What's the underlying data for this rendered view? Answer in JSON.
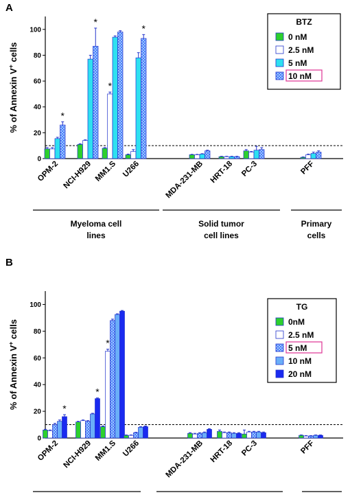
{
  "colors": {
    "green": "#2dd02d",
    "white": "#ffffff",
    "cyan": "#2ee0f0",
    "checker_a": "#9fc4ff",
    "checker_b": "#4a7ef8",
    "light_blue": "#6aaef8",
    "blue": "#1a2af0",
    "error": "#2233cc",
    "highlight": "#e0409a"
  },
  "common": {
    "ylabel_pre": "% of Annexin V",
    "ylabel_sup": "+",
    "ylabel_post": " cells",
    "threshold": 10
  },
  "chart_data": [
    {
      "type": "bar",
      "panel": "A",
      "ylim": [
        0,
        110
      ],
      "yticks": [
        0,
        20,
        40,
        60,
        80,
        100
      ],
      "threshold": 10,
      "legend": {
        "title": "BTZ",
        "position": "top-right",
        "highlighted": "10 nM"
      },
      "categories": [
        "OPM-2",
        "NCI-H929",
        "MM1.S",
        "U266",
        "MDA-231-MB",
        "HRT-18",
        "PC-3",
        "PFF"
      ],
      "series": [
        {
          "name": "0 nM",
          "fill": "green",
          "values": [
            7.5,
            11,
            8,
            3,
            3,
            1.5,
            6,
            1
          ],
          "errors": [
            1,
            0.5,
            0.5,
            0.5,
            0.3,
            0.3,
            1,
            0.3
          ]
        },
        {
          "name": "2.5 nM",
          "fill": "white",
          "values": [
            7.5,
            14,
            50,
            5.5,
            3,
            1.5,
            5,
            3
          ],
          "errors": [
            1,
            0.5,
            1.5,
            1.5,
            0.3,
            0.3,
            0.5,
            0.5
          ]
        },
        {
          "name": "5 nM",
          "fill": "cyan",
          "values": [
            15.5,
            77,
            94,
            78,
            3.5,
            1.5,
            6.5,
            4
          ],
          "errors": [
            1,
            3,
            1,
            4,
            0.3,
            0.3,
            3,
            1
          ]
        },
        {
          "name": "10 nM",
          "fill": "checker",
          "values": [
            26,
            87,
            98,
            93,
            6,
            1.5,
            7,
            5
          ],
          "errors": [
            2.5,
            14,
            1,
            3,
            0.5,
            0.3,
            1.5,
            1
          ]
        }
      ],
      "significant": [
        "OPM-2",
        "NCI-H929",
        "MM1.S",
        "U266"
      ],
      "groups": [
        {
          "label_lines": [
            "Myeloma cell",
            "lines"
          ],
          "first": 0,
          "last": 3
        },
        {
          "label_lines": [
            "Solid tumor",
            "cell lines"
          ],
          "first": 4,
          "last": 6
        },
        {
          "label_lines": [
            "Primary",
            "cells"
          ],
          "first": 7,
          "last": 7
        }
      ]
    },
    {
      "type": "bar",
      "panel": "B",
      "ylim": [
        0,
        110
      ],
      "yticks": [
        0,
        20,
        40,
        60,
        80,
        100
      ],
      "threshold": 10,
      "legend": {
        "title": "TG",
        "position": "top-right",
        "highlighted": "5 nM"
      },
      "categories": [
        "OPM-2",
        "NCI-H929",
        "MM1.S",
        "U266",
        "MDA-231-MB",
        "HRT-18",
        "PC-3",
        "PFF"
      ],
      "series": [
        {
          "name": "0nM",
          "fill": "green",
          "values": [
            6,
            12,
            8.5,
            2,
            3.5,
            5,
            3,
            2
          ],
          "errors": [
            0.5,
            0.5,
            0.5,
            0.3,
            0.5,
            1,
            3,
            0.3
          ]
        },
        {
          "name": "2.5 nM",
          "fill": "white",
          "values": [
            5.5,
            13,
            65,
            2,
            3,
            4,
            4.5,
            1.5
          ],
          "errors": [
            0.5,
            0.5,
            1.5,
            0.3,
            0.5,
            0.5,
            0.5,
            0.3
          ]
        },
        {
          "name": "5 nM",
          "fill": "checker",
          "values": [
            10,
            12.5,
            88,
            4,
            3.5,
            4,
            4.5,
            1.5
          ],
          "errors": [
            1,
            0.5,
            1,
            0.3,
            0.5,
            0.5,
            0.5,
            0.3
          ]
        },
        {
          "name": "10 nM",
          "fill": "light_blue",
          "values": [
            12.5,
            18,
            92.5,
            8,
            4,
            3.5,
            4.5,
            2
          ],
          "errors": [
            1,
            0.5,
            0.5,
            0.5,
            0.5,
            0.5,
            0.5,
            0.3
          ]
        },
        {
          "name": "20 nM",
          "fill": "blue",
          "values": [
            16,
            29.5,
            95,
            8.5,
            6.5,
            3.5,
            4,
            2
          ],
          "errors": [
            1.5,
            0.5,
            0.5,
            0.5,
            0.5,
            0.5,
            0.5,
            0.3
          ]
        }
      ],
      "significant": [
        "OPM-2",
        "NCI-H929",
        "MM1.S"
      ],
      "groups": [
        {
          "label_lines": [],
          "first": 0,
          "last": 3
        },
        {
          "label_lines": [],
          "first": 4,
          "last": 6
        },
        {
          "label_lines": [],
          "first": 7,
          "last": 7
        }
      ]
    }
  ]
}
